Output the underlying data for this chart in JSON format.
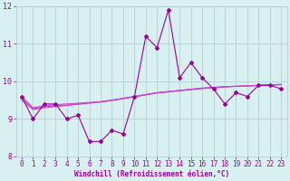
{
  "x": [
    0,
    1,
    2,
    3,
    4,
    5,
    6,
    7,
    8,
    9,
    10,
    11,
    12,
    13,
    14,
    15,
    16,
    17,
    18,
    19,
    20,
    21,
    22,
    23
  ],
  "line_main": [
    9.6,
    9.0,
    9.4,
    9.4,
    9.0,
    9.1,
    8.4,
    8.4,
    8.7,
    8.6,
    9.6,
    11.2,
    10.9,
    11.9,
    10.1,
    10.5,
    10.1,
    9.8,
    9.4,
    9.7,
    9.6,
    9.9,
    9.9,
    9.8
  ],
  "line_avg1": [
    9.6,
    9.3,
    9.35,
    9.38,
    9.4,
    9.42,
    9.44,
    9.46,
    9.5,
    9.55,
    9.6,
    9.65,
    9.7,
    9.73,
    9.76,
    9.79,
    9.82,
    9.84,
    9.86,
    9.87,
    9.88,
    9.89,
    9.9,
    9.92
  ],
  "line_avg2": [
    9.55,
    9.28,
    9.32,
    9.35,
    9.37,
    9.4,
    9.43,
    9.46,
    9.5,
    9.55,
    9.6,
    9.65,
    9.7,
    9.73,
    9.76,
    9.79,
    9.82,
    9.84,
    9.86,
    9.87,
    9.88,
    9.9,
    9.91,
    9.92
  ],
  "line_avg3": [
    9.5,
    9.25,
    9.3,
    9.33,
    9.36,
    9.39,
    9.42,
    9.45,
    9.49,
    9.54,
    9.59,
    9.64,
    9.69,
    9.72,
    9.75,
    9.78,
    9.81,
    9.83,
    9.85,
    9.87,
    9.88,
    9.89,
    9.9,
    9.91
  ],
  "line_color": "#990099",
  "avg_color": "#cc44cc",
  "background_color": "#d8f0f0",
  "grid_color": "#aacccc",
  "ylim": [
    8.0,
    12.0
  ],
  "xlim": [
    -0.5,
    23.5
  ],
  "yticks": [
    8,
    9,
    10,
    11,
    12
  ],
  "xticks": [
    0,
    1,
    2,
    3,
    4,
    5,
    6,
    7,
    8,
    9,
    10,
    11,
    12,
    13,
    14,
    15,
    16,
    17,
    18,
    19,
    20,
    21,
    22,
    23
  ],
  "xlabel": "Windchill (Refroidissement éolien,°C)",
  "marker": "D",
  "marker_size": 2.0,
  "line_width": 0.8,
  "tick_fontsize": 5.5,
  "xlabel_fontsize": 5.5
}
